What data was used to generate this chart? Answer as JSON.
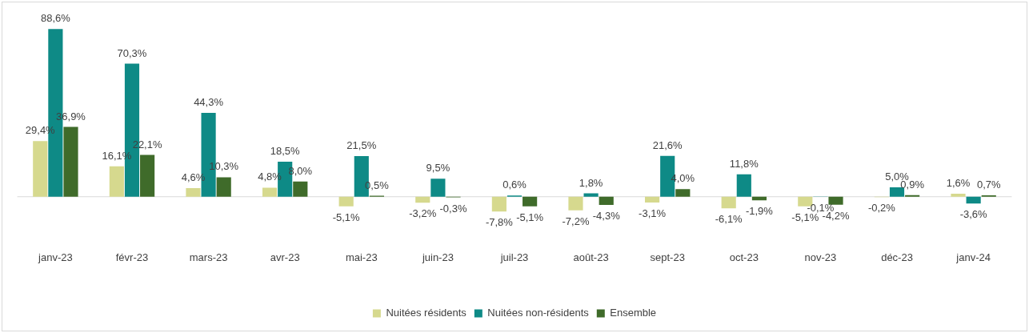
{
  "chart_data": {
    "type": "bar",
    "categories": [
      "janv-23",
      "févr-23",
      "mars-23",
      "avr-23",
      "mai-23",
      "juin-23",
      "juil-23",
      "août-23",
      "sept-23",
      "oct-23",
      "nov-23",
      "déc-23",
      "janv-24"
    ],
    "series": [
      {
        "name": "Nuitées résidents",
        "color": "#d6d98e",
        "values": [
          29.4,
          16.1,
          4.6,
          4.8,
          -5.1,
          -3.2,
          -7.8,
          -7.2,
          -3.1,
          -6.1,
          -5.1,
          -0.2,
          1.6
        ],
        "value_labels": [
          "29,4%",
          "16,1%",
          "4,6%",
          "4,8%",
          "-5,1%",
          "-3,2%",
          "-7,8%",
          "-7,2%",
          "-3,1%",
          "-6,1%",
          "-5,1%",
          "-0,2%",
          "1,6%"
        ]
      },
      {
        "name": "Nuitées non-résidents",
        "color": "#0e8a86",
        "values": [
          88.6,
          70.3,
          44.3,
          18.5,
          21.5,
          9.5,
          0.6,
          1.8,
          21.6,
          11.8,
          -0.1,
          5.0,
          -3.6
        ],
        "value_labels": [
          "88,6%",
          "70,3%",
          "44,3%",
          "18,5%",
          "21,5%",
          "9,5%",
          "0,6%",
          "1,8%",
          "21,6%",
          "11,8%",
          "-0,1%",
          "5,0%",
          "-3,6%"
        ]
      },
      {
        "name": "Ensemble",
        "color": "#3f6b2a",
        "values": [
          36.9,
          22.1,
          10.3,
          8.0,
          0.5,
          -0.3,
          -5.1,
          -4.3,
          4.0,
          -1.9,
          -4.2,
          0.9,
          0.7
        ],
        "value_labels": [
          "36,9%",
          "22,1%",
          "10,3%",
          "8,0%",
          "0,5%",
          "-0,3%",
          "-5,1%",
          "-4,3%",
          "4,0%",
          "-1,9%",
          "-4,2%",
          "0,9%",
          "0,7%"
        ]
      }
    ],
    "legend": "bottom",
    "grid": false
  }
}
